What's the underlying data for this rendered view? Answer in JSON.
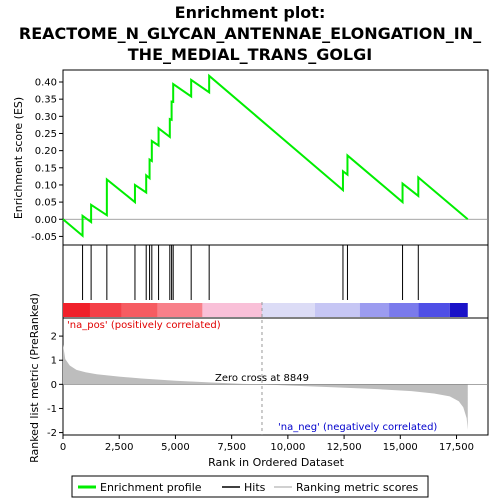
{
  "chart_data": {
    "type": "line",
    "title_lines": [
      "Enrichment plot:",
      "REACTOME_N_GLYCAN_ANTENNAE_ELONGATION_IN_",
      "THE_MEDIAL_TRANS_GOLGI"
    ],
    "xlabel": "Rank in Ordered Dataset",
    "ylabel_top": "Enrichment score (ES)",
    "ylabel_bottom": "Ranked list metric (PreRanked)",
    "xlim": [
      0,
      18900
    ],
    "x_ticks": [
      0,
      2500,
      5000,
      7500,
      10000,
      12500,
      15000,
      17500
    ],
    "x_tick_labels": [
      "0",
      "2,500",
      "5,000",
      "7,500",
      "10,000",
      "12,500",
      "15,000",
      "17,500"
    ],
    "es_ylim": [
      -0.075,
      0.435
    ],
    "es_ticks": [
      -0.05,
      0.0,
      0.05,
      0.1,
      0.15,
      0.2,
      0.25,
      0.3,
      0.35,
      0.4
    ],
    "es_tick_labels": [
      "-0.05",
      "0.00",
      "0.05",
      "0.10",
      "0.15",
      "0.20",
      "0.25",
      "0.30",
      "0.35",
      "0.40"
    ],
    "metric_ylim": [
      -2.1,
      2.75
    ],
    "metric_ticks": [
      -2,
      -1,
      0,
      1,
      2
    ],
    "metric_tick_labels": [
      "-2",
      "-1",
      "0",
      "1",
      "2"
    ],
    "hits": [
      870,
      1250,
      1950,
      3200,
      3700,
      3850,
      3950,
      4250,
      4750,
      4830,
      4900,
      5700,
      6500,
      12450,
      12650,
      15100,
      15800
    ],
    "es_curve": {
      "x": [
        0,
        870,
        870,
        1250,
        1250,
        1950,
        1950,
        3200,
        3200,
        3700,
        3700,
        3850,
        3850,
        3950,
        3950,
        4250,
        4250,
        4750,
        4750,
        4830,
        4830,
        4900,
        4900,
        5700,
        5700,
        6500,
        6500,
        12450,
        12450,
        12650,
        12650,
        15100,
        15100,
        15800,
        15800,
        18000
      ],
      "y": [
        0.0,
        -0.048,
        0.01,
        -0.008,
        0.042,
        0.012,
        0.116,
        0.05,
        0.1,
        0.078,
        0.128,
        0.12,
        0.174,
        0.17,
        0.228,
        0.215,
        0.265,
        0.24,
        0.292,
        0.29,
        0.343,
        0.342,
        0.394,
        0.358,
        0.406,
        0.37,
        0.418,
        0.085,
        0.14,
        0.13,
        0.186,
        0.05,
        0.104,
        0.068,
        0.122,
        0.0
      ]
    },
    "metric_curve": {
      "x": [
        0,
        100,
        300,
        600,
        1000,
        1500,
        2500,
        3500,
        5000,
        6500,
        8000,
        8849,
        10000,
        12000,
        14000,
        15500,
        16500,
        17200,
        17600,
        17800,
        17950,
        18000
      ],
      "y": [
        1.65,
        1.05,
        0.78,
        0.6,
        0.5,
        0.42,
        0.32,
        0.24,
        0.15,
        0.08,
        0.02,
        0.0,
        -0.05,
        -0.12,
        -0.2,
        -0.28,
        -0.38,
        -0.5,
        -0.7,
        -0.95,
        -1.4,
        -1.88
      ]
    },
    "zero_cross": 8849,
    "color_bands": [
      {
        "x0": 0,
        "x1": 1200,
        "color": "#f0202a"
      },
      {
        "x0": 1200,
        "x1": 2600,
        "color": "#f44048"
      },
      {
        "x0": 2600,
        "x1": 4200,
        "color": "#f65c62"
      },
      {
        "x0": 4200,
        "x1": 6200,
        "color": "#f8808a"
      },
      {
        "x0": 6200,
        "x1": 8849,
        "color": "#f9c0d8"
      },
      {
        "x0": 8849,
        "x1": 11200,
        "color": "#dcdcf6"
      },
      {
        "x0": 11200,
        "x1": 13200,
        "color": "#c6c6f4"
      },
      {
        "x0": 13200,
        "x1": 14500,
        "color": "#9c9cf0"
      },
      {
        "x0": 14500,
        "x1": 15800,
        "color": "#7a7aec"
      },
      {
        "x0": 15800,
        "x1": 17200,
        "color": "#4f4fe6"
      },
      {
        "x0": 17200,
        "x1": 18000,
        "color": "#1a12c8"
      }
    ],
    "annotations": {
      "pos": "'na_pos' (positively correlated)",
      "neg": "'na_neg' (negatively correlated)",
      "zero": "Zero cross at 8849"
    },
    "legend": [
      {
        "label": "Enrichment profile",
        "color": "#00ee00"
      },
      {
        "label": "Hits",
        "color": "#000000"
      },
      {
        "label": "Ranking metric scores",
        "color": "#c0c0c0"
      }
    ],
    "colors": {
      "es_line": "#00ee00",
      "metric_fill": "#bdbdbd",
      "pos_text": "#e00000",
      "neg_text": "#0000cc",
      "grid_zero": "#888888"
    }
  }
}
